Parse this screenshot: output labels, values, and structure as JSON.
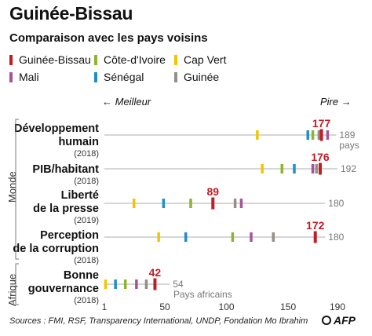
{
  "title": "Guinée-Bissau",
  "subtitle": "Comparaison avec les pays voisins",
  "direction": {
    "left": "← Meilleur",
    "right": "Pire →"
  },
  "legend": [
    {
      "name": "Guinée-Bissau",
      "color": "#c21d25"
    },
    {
      "name": "Côte-d'Ivoire",
      "color": "#8cb52f"
    },
    {
      "name": "Cap Vert",
      "color": "#f2c500"
    },
    {
      "name": "Mali",
      "color": "#a7539c"
    },
    {
      "name": "Sénégal",
      "color": "#1f8fc4"
    },
    {
      "name": "Guinée",
      "color": "#958e86"
    }
  ],
  "groups": {
    "world": "Monde",
    "africa": "Afrique"
  },
  "source": "Sources : FMI, RSF, Transparency International, UNDP, Fondation Mo Ibrahim",
  "logo": "AFP",
  "chart_data": {
    "type": "scatter",
    "title": "Guinée-Bissau",
    "xlim": [
      1,
      190
    ],
    "xticks": [
      1,
      50,
      100,
      150,
      190
    ],
    "rows": [
      {
        "label_line1": "Développement",
        "label_line2": "humain",
        "year": "(2018)",
        "total": "189",
        "total_unit": "pays",
        "values": {
          "Guinée-Bissau": 177,
          "Côte-d'Ivoire": 170,
          "Cap Vert": 125,
          "Mali": 182,
          "Sénégal": 166,
          "Guinée": 175
        },
        "highlight": "177"
      },
      {
        "label_line1": "PIB/habitant",
        "label_line2": "",
        "year": "(2018)",
        "total": "192",
        "total_unit": "",
        "values": {
          "Guinée-Bissau": 176,
          "Côte-d'Ivoire": 145,
          "Cap Vert": 129,
          "Mali": 170,
          "Sénégal": 155,
          "Guinée": 173
        },
        "highlight": "176"
      },
      {
        "label_line1": "Liberté",
        "label_line2": "de la presse",
        "year": "(2019)",
        "total": "180",
        "total_unit": "",
        "values": {
          "Guinée-Bissau": 89,
          "Côte-d'Ivoire": 71,
          "Cap Vert": 25,
          "Mali": 112,
          "Sénégal": 49,
          "Guinée": 107
        },
        "highlight": "89"
      },
      {
        "label_line1": "Perception",
        "label_line2": "de la corruption",
        "year": "(2018)",
        "total": "180",
        "total_unit": "",
        "values": {
          "Guinée-Bissau": 172,
          "Côte-d'Ivoire": 105,
          "Cap Vert": 45,
          "Mali": 120,
          "Sénégal": 67,
          "Guinée": 138
        },
        "highlight": "172"
      }
    ],
    "africa_row": {
      "label_line1": "Bonne",
      "label_line2": "gouvernance",
      "year": "(2018)",
      "total": "54",
      "total_unit": "Pays africains",
      "values": {
        "Guinée-Bissau": 42,
        "Côte-d'Ivoire": 18,
        "Cap Vert": 2,
        "Mali": 27,
        "Sénégal": 10,
        "Guinée": 35
      },
      "highlight": "42"
    }
  }
}
